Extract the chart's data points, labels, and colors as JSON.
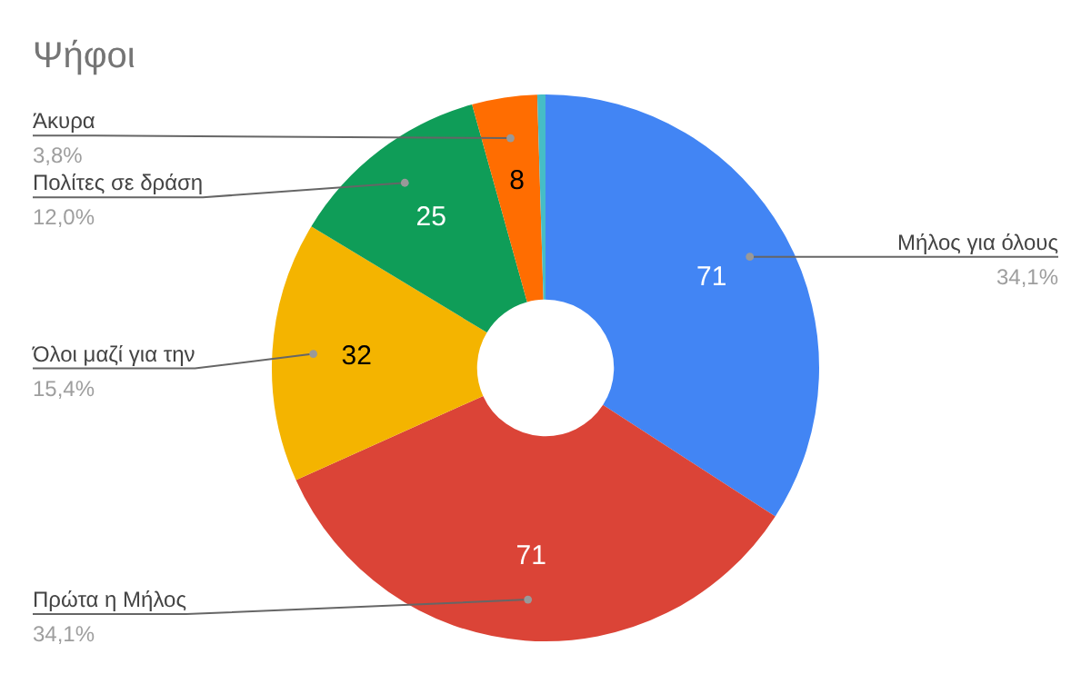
{
  "chart_data": {
    "type": "donut",
    "title": "Ψήφοι",
    "categories": [
      "Μήλος για όλους",
      "Πρώτα η Μήλος",
      "Όλοι μαζί για την",
      "Πολίτες σε δράση",
      "Άκυρα",
      null
    ],
    "values": [
      71,
      71,
      32,
      25,
      8,
      1
    ],
    "colors": [
      "#4285f4",
      "#db4437",
      "#f4b400",
      "#0f9d58",
      "#ff6d01",
      "#46bdc6"
    ],
    "value_labels": [
      "71",
      "71",
      "32",
      "25",
      "8",
      null
    ],
    "annotations": [
      "34,1%",
      "34,1%",
      "15,4%",
      "12,0%",
      "3,8%"
    ],
    "legend": false
  }
}
